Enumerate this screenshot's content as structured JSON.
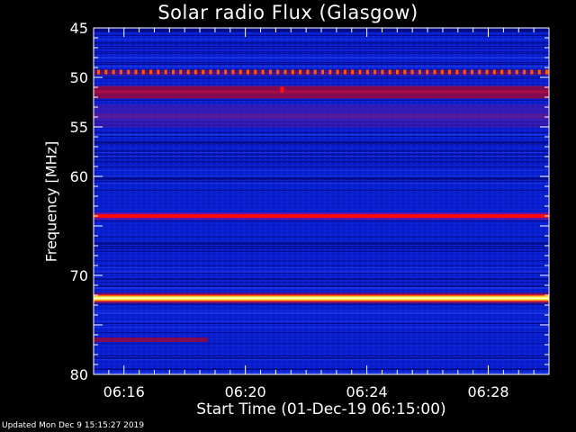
{
  "chart_data": {
    "type": "heatmap",
    "title": "Solar radio Flux (Glasgow)",
    "xlabel": "Start Time (01-Dec-19 06:15:00)",
    "ylabel": "Frequency [MHz]",
    "x_range": [
      "06:15:00",
      "06:30:00"
    ],
    "x_ticks": [
      "06:16",
      "06:20",
      "06:24",
      "06:28"
    ],
    "y_range": [
      45,
      80
    ],
    "y_ticks": [
      45,
      50,
      55,
      60,
      70,
      80
    ],
    "y_axis_inverted": true,
    "colormap": "blue-red-yellow-white",
    "bands": [
      {
        "freq_mhz": 49.5,
        "level": "red-dotted"
      },
      {
        "freq_mhz": 51.5,
        "level": "dark-red"
      },
      {
        "freq_mhz": 54.0,
        "level": "purple"
      },
      {
        "freq_mhz": 64.0,
        "level": "red"
      },
      {
        "freq_mhz": 72.3,
        "level": "white"
      },
      {
        "freq_mhz": 76.5,
        "level": "dark-red",
        "x_end": "06:18:45"
      }
    ]
  },
  "footer": "Updated Mon Dec  9 15:15:27 2019",
  "colors": {
    "background": "#000000",
    "base": "#0a1fd0",
    "dark": "#020a80",
    "purple": "#5018a0",
    "dark_red": "#8a0a48",
    "red": "#ff0a0a",
    "yellow": "#ffff40",
    "white": "#ffffe8"
  }
}
